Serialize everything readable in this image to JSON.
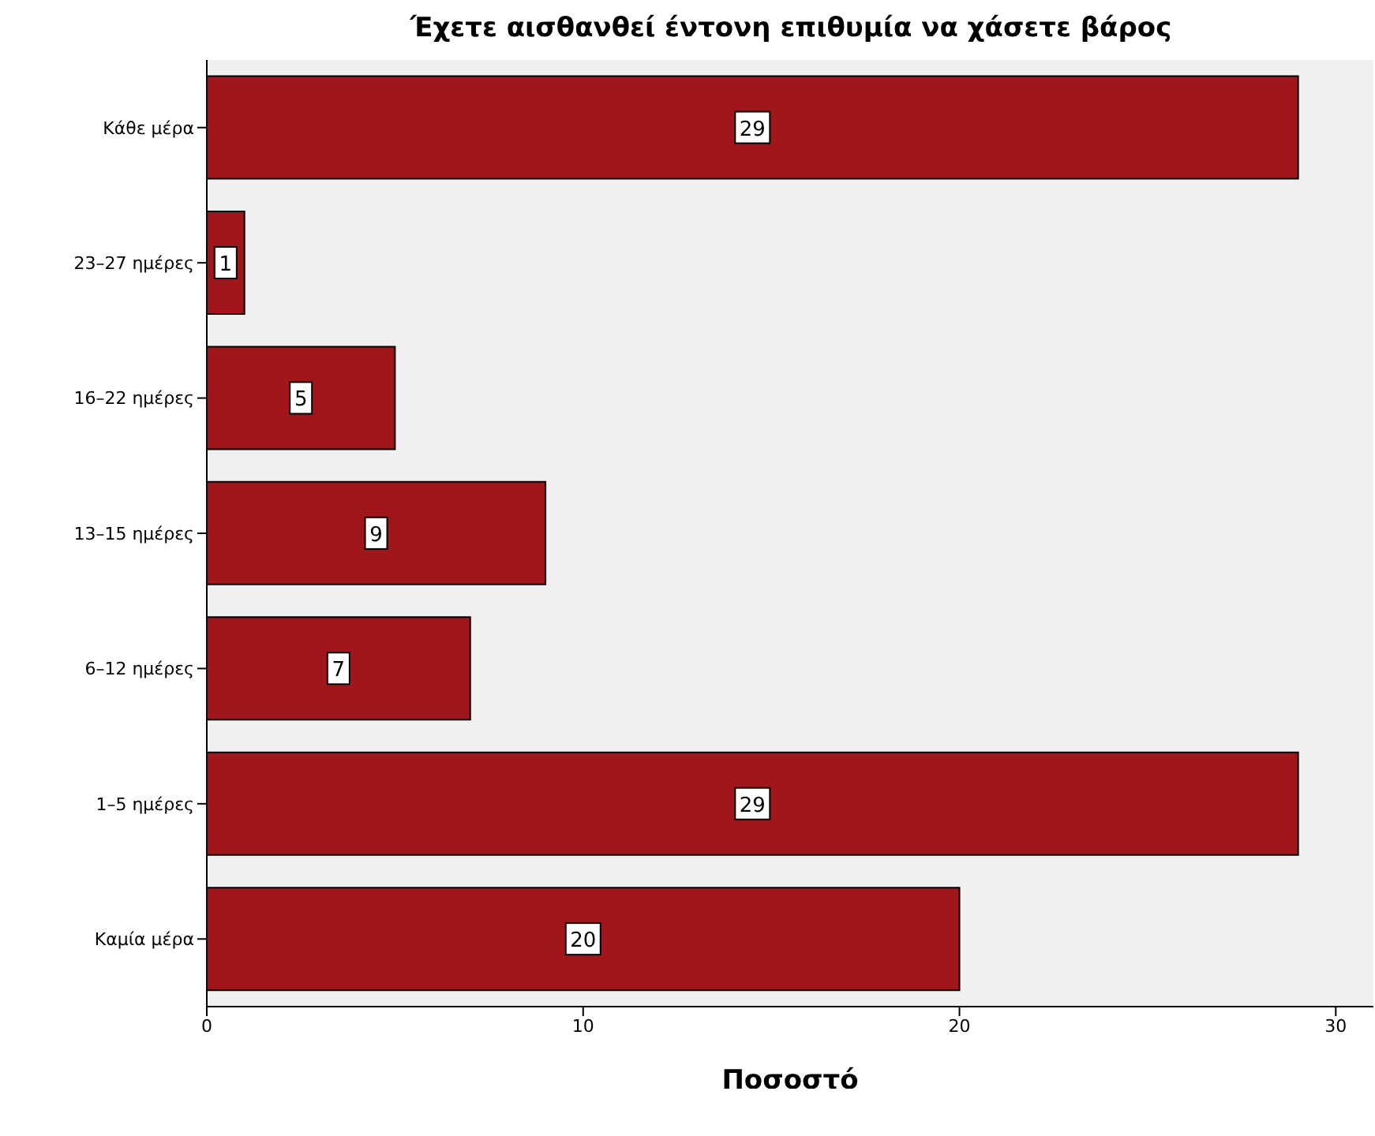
{
  "chart_data": {
    "type": "bar",
    "orientation": "horizontal",
    "title": "Έχετε αισθανθεί έντονη επιθυμία να χάσετε βάρος",
    "xlabel": "Ποσοστό",
    "categories": [
      "Κάθε μέρα",
      "23–27 ημέρες",
      "16–22 ημέρες",
      "13–15 ημέρες",
      "6–12 ημέρες",
      "1–5 ημέρες",
      "Καμία μέρα"
    ],
    "values": [
      29,
      1,
      5,
      9,
      7,
      29,
      20
    ],
    "color": "#a0161b",
    "xlim": [
      0,
      31
    ],
    "xticks": [
      0,
      10,
      20,
      30
    ],
    "data_labels": true
  }
}
